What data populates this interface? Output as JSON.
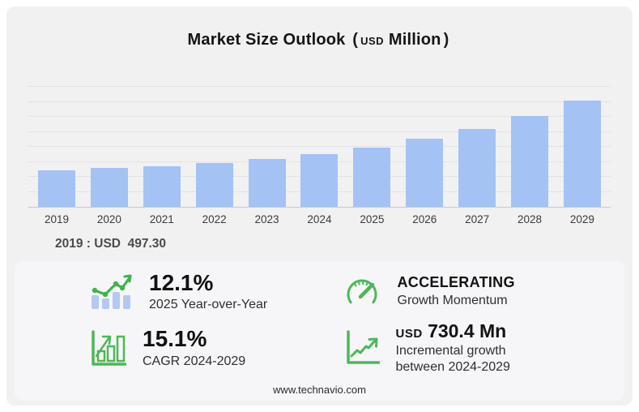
{
  "title": {
    "main": "Market Size Outlook",
    "open": "(",
    "currency": "USD",
    "unit": "Million",
    "close": ")"
  },
  "chart_data": {
    "type": "bar",
    "title": "Market Size Outlook (USD Million)",
    "categories": [
      "2019",
      "2020",
      "2021",
      "2022",
      "2023",
      "2024",
      "2025",
      "2026",
      "2027",
      "2028",
      "2029"
    ],
    "values": [
      497.3,
      524,
      550,
      598,
      649,
      716,
      803,
      920,
      1053,
      1237,
      1446
    ],
    "ylim": [
      0,
      1630
    ],
    "grid": true,
    "gridline_count": 8,
    "legend": false,
    "bar_color": "#a4c2f4"
  },
  "annotation": {
    "text": "2019 : USD  497.30"
  },
  "stats": [
    {
      "icon": "trend-bars-icon",
      "value": "12.1%",
      "label": "2025 Year-over-Year"
    },
    {
      "icon": "speedometer-icon",
      "value": "ACCELERATING",
      "label": "Growth Momentum"
    },
    {
      "icon": "growth-bars-icon",
      "value": "15.1%",
      "label": "CAGR 2024-2029"
    },
    {
      "icon": "line-chart-icon",
      "value_prefix": "USD",
      "value": "730.4 Mn",
      "label": "Incremental growth between 2024-2029"
    }
  ],
  "footer": {
    "text": "www.technavio.com"
  },
  "colors": {
    "bar_blue": "#a4c2f4",
    "icon_green": "#4db858",
    "icon_bar_blue": "#b3c9f1",
    "panel_bg": "#f1f1f2",
    "stats_bg": "#f6f6f8"
  }
}
